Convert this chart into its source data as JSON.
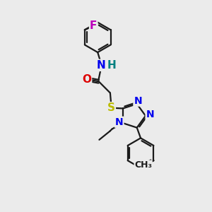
{
  "bg_color": "#ebebeb",
  "bond_color": "#1a1a1a",
  "N_color": "#0000ee",
  "O_color": "#dd0000",
  "S_color": "#bbbb00",
  "F_color": "#bb00bb",
  "H_color": "#008080",
  "font_size": 10,
  "bond_width": 1.6,
  "figsize": [
    3.0,
    3.0
  ],
  "dpi": 100,
  "xlim": [
    0,
    10
  ],
  "ylim": [
    0,
    10
  ]
}
